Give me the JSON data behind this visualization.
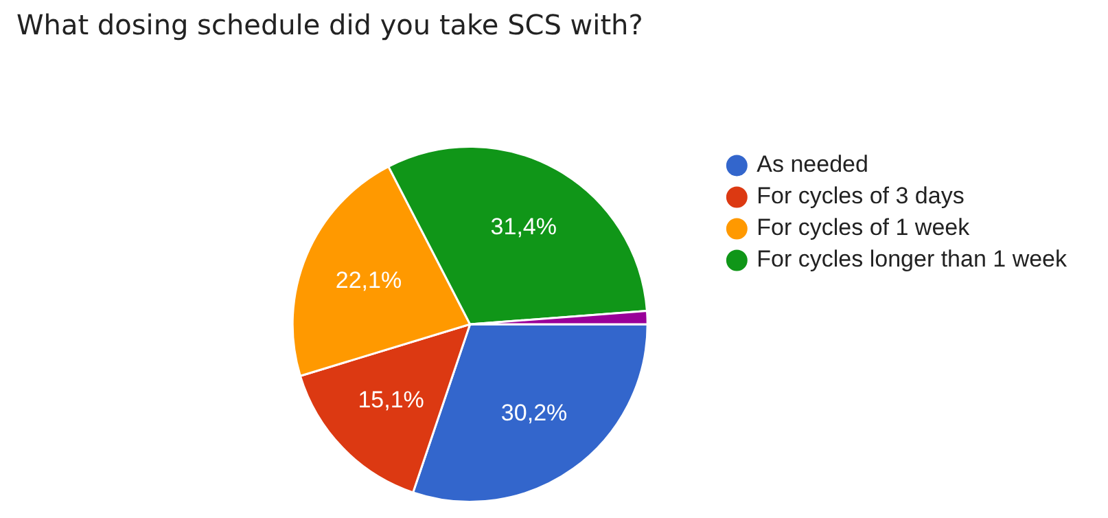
{
  "chart_data": {
    "type": "pie",
    "title": "What dosing schedule did you take SCS with?",
    "categories": [
      "As needed",
      "For cycles of 3 days",
      "For cycles of 1 week",
      "For cycles longer than 1 week",
      null
    ],
    "values": [
      30.2,
      15.1,
      22.1,
      31.4,
      1.2
    ],
    "colors": [
      "#3366cc",
      "#dc3912",
      "#ff9900",
      "#109618",
      "#990099"
    ],
    "value_labels": [
      "30,2%",
      "15,1%",
      "22,1%",
      "31,4%",
      null
    ],
    "legend": "right"
  }
}
